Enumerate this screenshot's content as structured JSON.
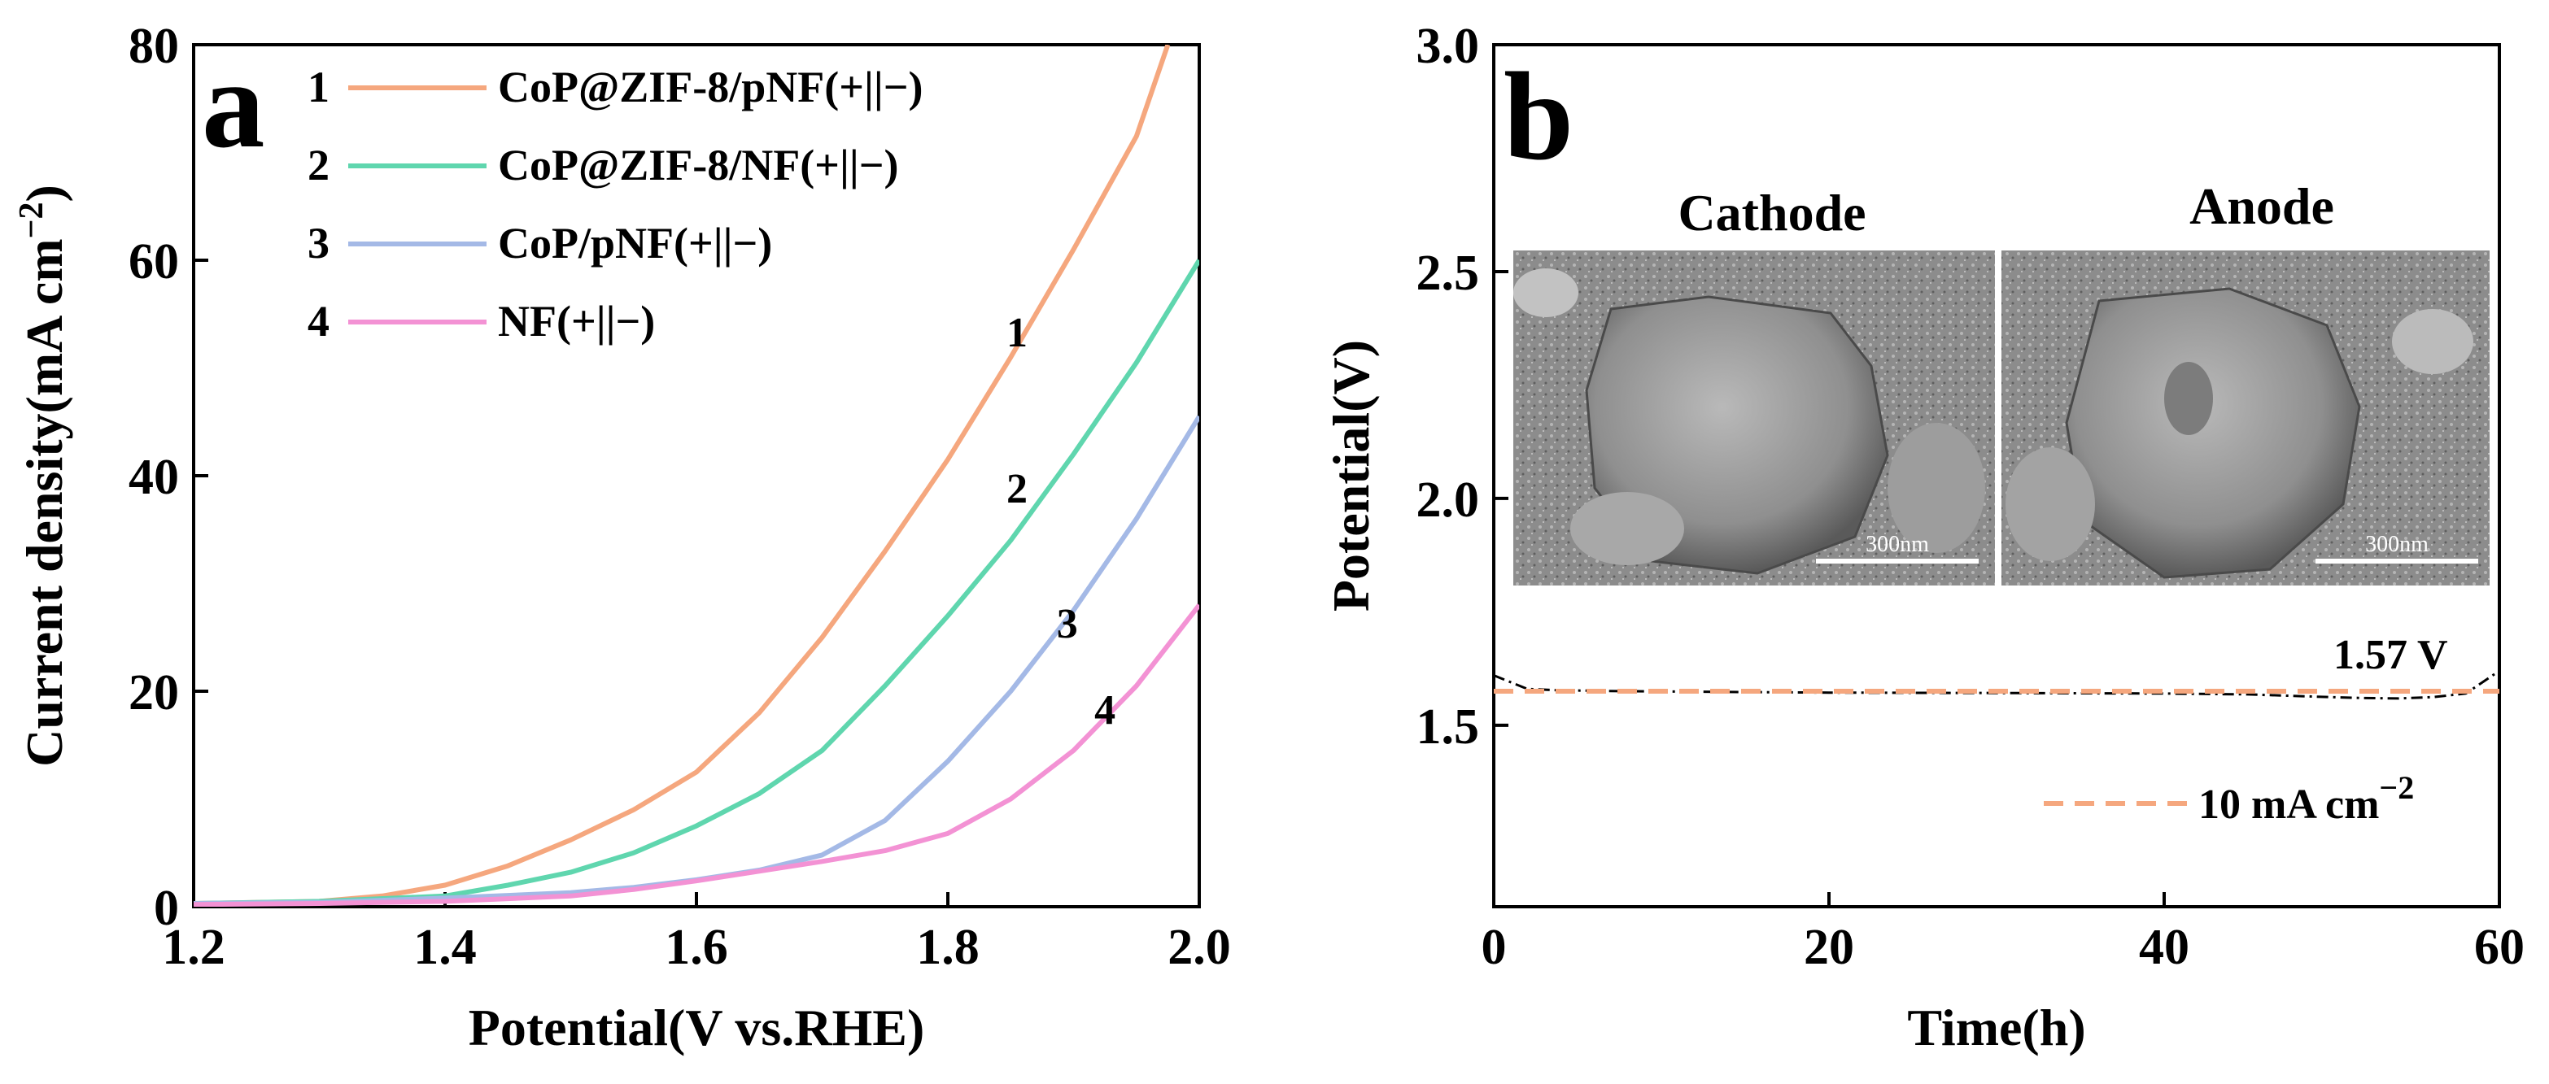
{
  "chart_data": [
    {
      "panel_label": "a",
      "type": "line",
      "xlabel": "Potential(V vs.RHE)",
      "ylabel_main": "Current density(mA cm",
      "ylabel_sup": "−2",
      "ylabel_close": ")",
      "xlim": [
        1.2,
        2.0
      ],
      "ylim": [
        0,
        80
      ],
      "xticks": [
        "1.2",
        "1.4",
        "1.6",
        "1.8",
        "2.0"
      ],
      "yticks": [
        "0",
        "20",
        "40",
        "60",
        "80"
      ],
      "legend": "top-left",
      "series": [
        {
          "id": "1",
          "name": "CoP@ZIF-8/pNF(+||−)",
          "color": "#F5A77E",
          "x": [
            1.2,
            1.3,
            1.35,
            1.4,
            1.45,
            1.5,
            1.55,
            1.6,
            1.65,
            1.7,
            1.75,
            1.8,
            1.85,
            1.9,
            1.95,
            1.975
          ],
          "y": [
            0.3,
            0.5,
            1.0,
            2.0,
            3.8,
            6.2,
            9.0,
            12.5,
            18.0,
            25.0,
            33.0,
            41.5,
            51.0,
            61.0,
            71.5,
            80.0
          ]
        },
        {
          "id": "2",
          "name": "CoP@ZIF-8/NF(+||−)",
          "color": "#5FD6AE",
          "x": [
            1.2,
            1.3,
            1.4,
            1.45,
            1.5,
            1.55,
            1.6,
            1.65,
            1.7,
            1.75,
            1.8,
            1.85,
            1.9,
            1.95,
            2.0
          ],
          "y": [
            0.3,
            0.5,
            1.0,
            2.0,
            3.2,
            5.0,
            7.5,
            10.5,
            14.5,
            20.5,
            27.0,
            34.0,
            42.0,
            50.5,
            60.0
          ]
        },
        {
          "id": "3",
          "name": "CoP/pNF(+||−)",
          "color": "#A4B9E6",
          "x": [
            1.2,
            1.3,
            1.4,
            1.5,
            1.55,
            1.6,
            1.65,
            1.7,
            1.75,
            1.8,
            1.85,
            1.9,
            1.95,
            2.0
          ],
          "y": [
            0.3,
            0.4,
            0.8,
            1.3,
            1.8,
            2.5,
            3.4,
            4.8,
            8.0,
            13.5,
            20.0,
            27.5,
            36.0,
            45.5
          ]
        },
        {
          "id": "4",
          "name": "NF(+||−)",
          "color": "#F392D4",
          "x": [
            1.2,
            1.3,
            1.4,
            1.5,
            1.55,
            1.6,
            1.65,
            1.7,
            1.75,
            1.8,
            1.85,
            1.9,
            1.95,
            2.0
          ],
          "y": [
            0.2,
            0.3,
            0.5,
            1.0,
            1.6,
            2.4,
            3.3,
            4.2,
            5.2,
            6.8,
            10.0,
            14.5,
            20.5,
            28.0
          ]
        }
      ],
      "curve_labels": [
        {
          "text": "1",
          "x": 1.855,
          "y": 52.0
        },
        {
          "text": "2",
          "x": 1.855,
          "y": 37.5
        },
        {
          "text": "3",
          "x": 1.895,
          "y": 25.0
        },
        {
          "text": "4",
          "x": 1.925,
          "y": 17.0
        }
      ]
    },
    {
      "panel_label": "b",
      "type": "line",
      "xlabel": "Time(h)",
      "ylabel": "Potential(V)",
      "xlim": [
        0,
        60
      ],
      "ylim": [
        1.1,
        3.0
      ],
      "xticks": [
        "0",
        "20",
        "40",
        "60"
      ],
      "yticks": [
        "1.5",
        "2.0",
        "2.5",
        "3.0"
      ],
      "series": [
        {
          "name": "potential",
          "color": "#000000",
          "style": "dash-dot",
          "x": [
            0,
            1,
            2,
            4,
            8,
            12,
            20,
            30,
            40,
            45,
            50,
            52,
            54,
            56,
            58,
            60
          ],
          "y": [
            1.61,
            1.595,
            1.58,
            1.577,
            1.575,
            1.574,
            1.572,
            1.571,
            1.57,
            1.568,
            1.562,
            1.56,
            1.559,
            1.562,
            1.57,
            1.62
          ]
        },
        {
          "name": "10 mA cm−2",
          "color": "#F5A77E",
          "style": "dashed",
          "x": [
            0,
            60
          ],
          "y": [
            1.575,
            1.575
          ]
        }
      ],
      "annotations": {
        "value_label": "1.57 V",
        "legend_main": "10 mA cm",
        "legend_sup": "−2",
        "inset_left_title": "Cathode",
        "inset_right_title": "Anode",
        "scalebar_left": "300nm",
        "scalebar_right": "300nm"
      }
    }
  ]
}
